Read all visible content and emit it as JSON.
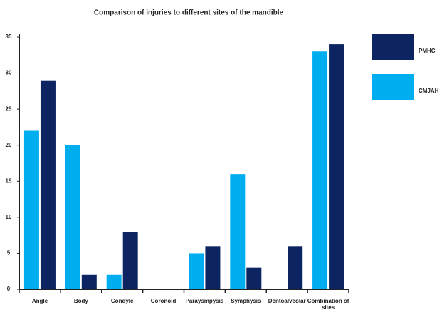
{
  "chart_data": {
    "type": "bar",
    "title": "Comparison of injuries to different sites of the mandible",
    "categories": [
      "Angle",
      "Body",
      "Condyle",
      "Coronoid",
      "Paraysmpysis",
      "Symphysis",
      "Dentoalveolar",
      "Combination of sites"
    ],
    "series": [
      {
        "name": "PMHC",
        "color": "#0c2461",
        "values": [
          29,
          2,
          8,
          0,
          6,
          3,
          6,
          34
        ]
      },
      {
        "name": "CMJAH",
        "color": "#00aeef",
        "values": [
          22,
          20,
          2,
          0,
          5,
          16,
          0,
          33
        ]
      }
    ],
    "ylim": [
      0,
      35
    ],
    "yticks": [
      0,
      5,
      10,
      15,
      20,
      25,
      30,
      35
    ],
    "grid": false,
    "legend": "right"
  }
}
